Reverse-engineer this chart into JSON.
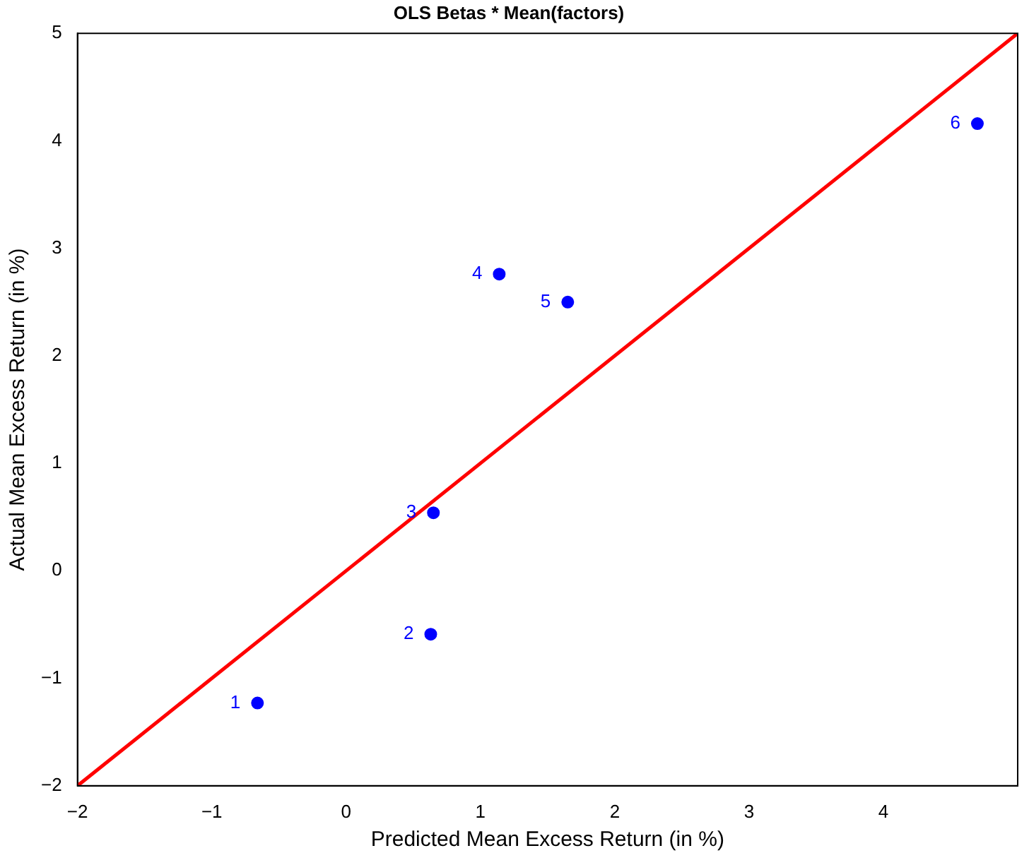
{
  "chart_data": {
    "type": "scatter",
    "title": "OLS Betas * Mean(factors)",
    "xlabel": "Predicted Mean Excess Return (in %)",
    "ylabel": "Actual Mean Excess Return (in %)",
    "xlim": [
      -2,
      5
    ],
    "ylim": [
      -2,
      5
    ],
    "xticks": [
      -2,
      -1,
      0,
      1,
      2,
      3,
      4
    ],
    "yticks": [
      -2,
      -1,
      0,
      1,
      2,
      3,
      4,
      5
    ],
    "grid": false,
    "legend": false,
    "series": [
      {
        "marker": "circle",
        "color": "#0000ff",
        "x": [
          -0.66,
          0.63,
          0.65,
          1.14,
          1.65,
          4.7
        ],
        "values": [
          -1.23,
          -0.59,
          0.54,
          2.76,
          2.5,
          4.16
        ]
      },
      {
        "type": "line",
        "marker": "none",
        "color": "#ff0000",
        "x": [
          -2,
          5
        ],
        "values": [
          -2,
          5
        ]
      }
    ],
    "annotations": [
      {
        "text": "1",
        "x": -0.66,
        "y": -1.23
      },
      {
        "text": "2",
        "x": 0.63,
        "y": -0.59
      },
      {
        "text": "3",
        "x": 0.65,
        "y": 0.54
      },
      {
        "text": "4",
        "x": 1.14,
        "y": 2.76
      },
      {
        "text": "5",
        "x": 1.65,
        "y": 2.5
      },
      {
        "text": "6",
        "x": 4.7,
        "y": 4.16
      }
    ]
  }
}
